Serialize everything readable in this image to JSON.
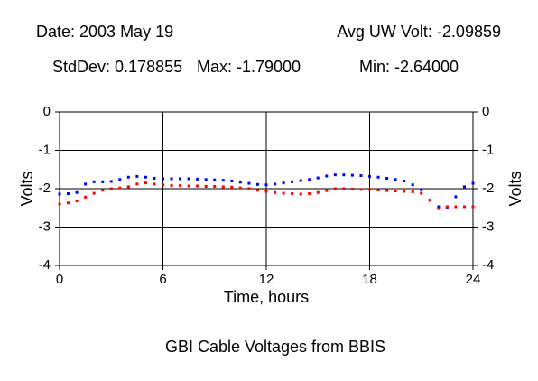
{
  "chart_data": {
    "type": "scatter",
    "title": "GBI Cable Voltages from BBIS",
    "annotations": [
      "Date: 2003 May 19",
      "Avg UW Volt: -2.09859",
      "StdDev: 0.178855",
      "Max: -1.79000",
      "Min: -2.64000"
    ],
    "x_label": "Time, hours",
    "y_label": "Volts",
    "xlim": [
      0,
      24
    ],
    "xticks": [
      0,
      6,
      12,
      18,
      24
    ],
    "ylim": [
      -4,
      0
    ],
    "yticks": [
      0,
      -1,
      -2,
      -3,
      -4
    ],
    "grid": true,
    "x": [
      0,
      0.5,
      1,
      1.5,
      2,
      2.5,
      3,
      3.5,
      4,
      4.5,
      5,
      5.5,
      6,
      6.5,
      7,
      7.5,
      8,
      8.5,
      9,
      9.5,
      10,
      10.5,
      11,
      11.5,
      12,
      12.5,
      13,
      13.5,
      14,
      14.5,
      15,
      15.5,
      16,
      16.5,
      17,
      17.5,
      18,
      18.5,
      19,
      19.5,
      20,
      20.5,
      21,
      21.5,
      22,
      22.5,
      23,
      23.5,
      24
    ],
    "series": [
      {
        "color": "#0000ff",
        "values": [
          -2.14,
          -2.13,
          -2.1,
          -1.88,
          -1.82,
          -1.82,
          -1.81,
          -1.76,
          -1.7,
          -1.68,
          -1.7,
          -1.73,
          -1.74,
          -1.74,
          -1.74,
          -1.74,
          -1.75,
          -1.76,
          -1.77,
          -1.78,
          -1.8,
          -1.83,
          -1.86,
          -1.89,
          -1.9,
          -1.88,
          -1.85,
          -1.82,
          -1.79,
          -1.76,
          -1.72,
          -1.67,
          -1.64,
          -1.64,
          -1.65,
          -1.66,
          -1.68,
          -1.7,
          -1.73,
          -1.76,
          -1.8,
          -1.9,
          -2.03,
          -2.3,
          -2.47,
          -2.49,
          -2.21,
          -1.95,
          -1.86
        ]
      },
      {
        "color": "#ff0000",
        "values": [
          -2.4,
          -2.37,
          -2.32,
          -2.22,
          -2.12,
          -2.04,
          -2.0,
          -1.98,
          -1.95,
          -1.88,
          -1.85,
          -1.88,
          -1.9,
          -1.92,
          -1.92,
          -1.93,
          -1.93,
          -1.94,
          -1.94,
          -1.95,
          -1.96,
          -1.98,
          -2.0,
          -2.04,
          -2.07,
          -2.1,
          -2.12,
          -2.13,
          -2.14,
          -2.13,
          -2.1,
          -2.05,
          -2.0,
          -2.0,
          -2.01,
          -2.02,
          -2.02,
          -2.04,
          -2.05,
          -2.06,
          -2.07,
          -2.08,
          -2.12,
          -2.3,
          -2.52,
          -2.47,
          -2.47,
          -2.47,
          -2.47
        ]
      }
    ]
  }
}
